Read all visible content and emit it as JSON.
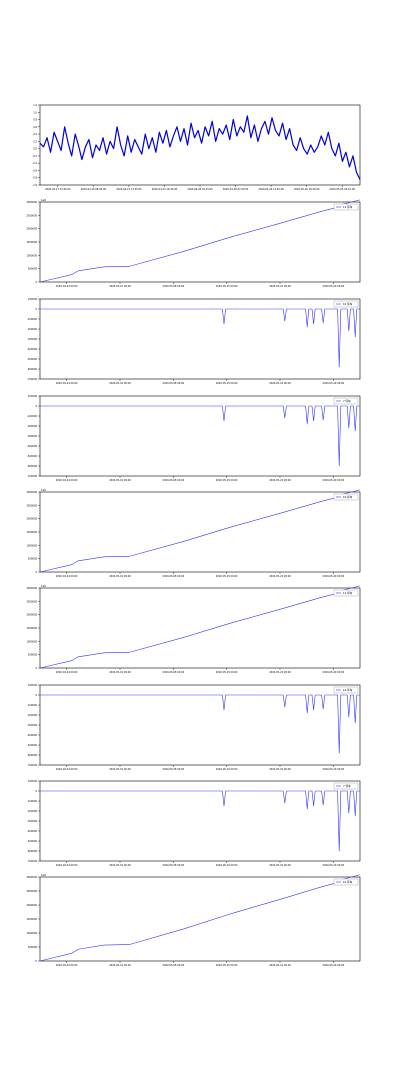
{
  "chart_data": [
    {
      "type": "line",
      "ylim": [
        -1.0,
        1.2
      ],
      "yticks": [
        1.2,
        1.0,
        0.8,
        0.6,
        0.4,
        0.2,
        0.0,
        -0.2,
        -0.4,
        -0.6,
        -0.8,
        -1.0
      ],
      "ytick_labels": [
        "1.2",
        "1.0",
        "0.8",
        "0.6",
        "0.4",
        "0.2",
        "0.0",
        "-0.2",
        "-0.4",
        "-0.6",
        "-0.8",
        "-1.0"
      ],
      "xtick_labels": [
        "2020-04-17 03:45:00",
        "2020-04-19 08:00:00",
        "2020-04-21 13:45:00",
        "2020-04-23 19:30:00",
        "2020-04-26 01:15:00",
        "2020-04-28 07:00:00",
        "2020-04-30 12:45:00",
        "2020-05-02 18:30:00",
        "2020-05-05 00:15:00"
      ],
      "series": [
        {
          "color": "#0000dd",
          "x": [
            0.0,
            0.011,
            0.022,
            0.033,
            0.044,
            0.055,
            0.066,
            0.077,
            0.088,
            0.099,
            0.11,
            0.12,
            0.131,
            0.142,
            0.153,
            0.164,
            0.175,
            0.186,
            0.197,
            0.208,
            0.219,
            0.23,
            0.241,
            0.252,
            0.263,
            0.274,
            0.285,
            0.296,
            0.307,
            0.318,
            0.329,
            0.34,
            0.351,
            0.362,
            0.373,
            0.384,
            0.395,
            0.406,
            0.417,
            0.428,
            0.439,
            0.45,
            0.461,
            0.472,
            0.483,
            0.494,
            0.505,
            0.516,
            0.527,
            0.538,
            0.549,
            0.56,
            0.571,
            0.582,
            0.593,
            0.604,
            0.615,
            0.626,
            0.637,
            0.648,
            0.659,
            0.67,
            0.681,
            0.692,
            0.703,
            0.714,
            0.725,
            0.736,
            0.747,
            0.758,
            0.769,
            0.78,
            0.791,
            0.802,
            0.813,
            0.824,
            0.835,
            0.846,
            0.857,
            0.868,
            0.879,
            0.89,
            0.901,
            0.912,
            0.923,
            0.934,
            0.945,
            0.956,
            0.967,
            0.978,
            0.989,
            1.0
          ],
          "y": [
            0.15,
            0.05,
            0.3,
            -0.1,
            0.45,
            0.2,
            -0.05,
            0.6,
            0.15,
            -0.2,
            0.4,
            0.1,
            -0.3,
            0.05,
            0.25,
            -0.25,
            0.1,
            -0.05,
            0.3,
            -0.15,
            0.2,
            0.0,
            0.6,
            0.1,
            -0.2,
            0.35,
            -0.1,
            0.25,
            0.05,
            -0.15,
            0.4,
            0.0,
            0.3,
            -0.1,
            0.45,
            0.15,
            0.5,
            0.05,
            0.35,
            0.6,
            0.2,
            0.55,
            0.1,
            0.7,
            0.3,
            0.5,
            0.15,
            0.6,
            0.35,
            0.75,
            0.2,
            0.55,
            0.4,
            0.65,
            0.25,
            0.8,
            0.35,
            0.6,
            0.45,
            0.9,
            0.3,
            0.65,
            0.2,
            0.55,
            0.75,
            0.4,
            0.85,
            0.5,
            0.35,
            0.7,
            0.25,
            0.55,
            0.1,
            -0.05,
            0.3,
            0.0,
            -0.15,
            0.1,
            -0.1,
            0.05,
            0.35,
            0.1,
            0.45,
            0.0,
            -0.2,
            0.15,
            -0.35,
            -0.1,
            -0.5,
            -0.2,
            -0.65,
            -0.85
          ]
        }
      ]
    },
    {
      "type": "line",
      "offset_text": "1e6",
      "legend": "11 停车",
      "ylim": [
        0,
        3000000
      ],
      "yticks": [
        0,
        500000,
        1000000,
        1500000,
        2000000,
        2500000,
        3000000
      ],
      "ytick_labels": [
        "0",
        "500000",
        "1000000",
        "1500000",
        "2000000",
        "2500000",
        "3000000"
      ],
      "xtick_labels": [
        "2020-04-24 00:00",
        "2020-05-01 00:00",
        "2020-05-08 00:00",
        "2020-05-15 00:00",
        "2020-05-22 00:00",
        "2020-05-29 00:00"
      ],
      "series": [
        {
          "color": "#3333ff",
          "x": [
            0.0,
            0.1,
            0.12,
            0.2,
            0.28,
            0.45,
            0.6,
            0.75,
            0.88,
            0.93,
            0.94,
            1.0
          ],
          "y": [
            0,
            280000,
            420000,
            570000,
            590000,
            1150000,
            1700000,
            2200000,
            2650000,
            2800000,
            2900000,
            3080000
          ]
        }
      ]
    },
    {
      "type": "line",
      "legend": "10 停车",
      "ylim": [
        -700000,
        100000
      ],
      "yticks": [
        100000,
        0,
        -100000,
        -200000,
        -300000,
        -400000,
        -500000,
        -600000,
        -700000
      ],
      "ytick_labels": [
        "100000",
        "0",
        "-100000",
        "-200000",
        "-300000",
        "-400000",
        "-500000",
        "-600000",
        "-700000"
      ],
      "xtick_labels": [
        "2020-04-24 00:00",
        "2020-05-01 00:00",
        "2020-05-08 00:00",
        "2020-05-15 00:00",
        "2020-05-22 00:00",
        "2020-05-29 00:00"
      ],
      "series": [
        {
          "color": "#3333ff",
          "x": [
            0.0,
            0.57,
            0.575,
            0.58,
            0.76,
            0.765,
            0.77,
            0.83,
            0.835,
            0.84,
            0.85,
            0.855,
            0.86,
            0.88,
            0.885,
            0.89,
            0.93,
            0.935,
            0.94,
            0.96,
            0.965,
            0.97,
            0.98,
            0.985,
            0.99,
            1.0
          ],
          "y": [
            0,
            0,
            -150000,
            0,
            0,
            -120000,
            0,
            0,
            -180000,
            0,
            0,
            -150000,
            0,
            0,
            -140000,
            0,
            0,
            -580000,
            0,
            0,
            -220000,
            0,
            0,
            -280000,
            0,
            0
          ]
        }
      ]
    },
    {
      "type": "line",
      "legend": "7 停车",
      "ylim": [
        -700000,
        100000
      ],
      "yticks": [
        100000,
        0,
        -100000,
        -200000,
        -300000,
        -400000,
        -500000,
        -600000,
        -700000
      ],
      "ytick_labels": [
        "100000",
        "0",
        "-100000",
        "-200000",
        "-300000",
        "-400000",
        "-500000",
        "-600000",
        "-700000"
      ],
      "xtick_labels": [
        "2020-04-24 00:00",
        "2020-05-01 00:00",
        "2020-05-08 00:00",
        "2020-05-15 00:00",
        "2020-05-22 00:00",
        "2020-05-29 00:00"
      ],
      "series": [
        {
          "color": "#3333ff",
          "x": [
            0.0,
            0.57,
            0.575,
            0.58,
            0.76,
            0.765,
            0.77,
            0.83,
            0.835,
            0.84,
            0.85,
            0.855,
            0.86,
            0.88,
            0.885,
            0.89,
            0.93,
            0.935,
            0.94,
            0.96,
            0.965,
            0.97,
            0.98,
            0.985,
            0.99,
            1.0
          ],
          "y": [
            0,
            0,
            -150000,
            0,
            0,
            -120000,
            0,
            0,
            -180000,
            0,
            0,
            -150000,
            0,
            0,
            -140000,
            0,
            0,
            -600000,
            0,
            0,
            -220000,
            0,
            0,
            -250000,
            0,
            0
          ]
        }
      ]
    },
    {
      "type": "line",
      "offset_text": "1e6",
      "legend": "10 停车",
      "ylim": [
        0,
        3000000
      ],
      "yticks": [
        0,
        500000,
        1000000,
        1500000,
        2000000,
        2500000,
        3000000
      ],
      "ytick_labels": [
        "0",
        "500000",
        "1000000",
        "1500000",
        "2000000",
        "2500000",
        "3000000"
      ],
      "xtick_labels": [
        "2020-04-24 00:00",
        "2020-05-01 00:00",
        "2020-05-08 00:00",
        "2020-05-15 00:00",
        "2020-05-22 00:00",
        "2020-05-29 00:00"
      ],
      "series": [
        {
          "color": "#3333ff",
          "x": [
            0.0,
            0.1,
            0.12,
            0.2,
            0.28,
            0.45,
            0.6,
            0.75,
            0.88,
            0.93,
            0.94,
            1.0
          ],
          "y": [
            0,
            280000,
            420000,
            570000,
            590000,
            1150000,
            1700000,
            2200000,
            2650000,
            2800000,
            2900000,
            3080000
          ]
        }
      ]
    },
    {
      "type": "line",
      "offset_text": "1e6",
      "legend": "11 停车",
      "ylim": [
        0,
        3000000
      ],
      "yticks": [
        0,
        500000,
        1000000,
        1500000,
        2000000,
        2500000,
        3000000
      ],
      "ytick_labels": [
        "0",
        "500000",
        "1000000",
        "1500000",
        "2000000",
        "2500000",
        "3000000"
      ],
      "xtick_labels": [
        "2020-04-24 00:00",
        "2020-05-01 00:00",
        "2020-05-08 00:00",
        "2020-05-15 00:00",
        "2020-05-22 00:00",
        "2020-05-29 00:00"
      ],
      "series": [
        {
          "color": "#3333ff",
          "x": [
            0.0,
            0.1,
            0.12,
            0.2,
            0.28,
            0.45,
            0.6,
            0.75,
            0.88,
            0.93,
            0.94,
            1.0
          ],
          "y": [
            0,
            280000,
            420000,
            570000,
            590000,
            1150000,
            1700000,
            2200000,
            2650000,
            2800000,
            2900000,
            3080000
          ]
        }
      ]
    },
    {
      "type": "line",
      "legend": "10 停车",
      "ylim": [
        -700000,
        100000
      ],
      "yticks": [
        100000,
        0,
        -100000,
        -200000,
        -300000,
        -400000,
        -500000,
        -600000,
        -700000
      ],
      "ytick_labels": [
        "100000",
        "0",
        "-100000",
        "-200000",
        "-300000",
        "-400000",
        "-500000",
        "-600000",
        "-700000"
      ],
      "xtick_labels": [
        "2020-04-24 00:00",
        "2020-05-01 00:00",
        "2020-05-08 00:00",
        "2020-05-15 00:00",
        "2020-05-22 00:00",
        "2020-05-29 00:00"
      ],
      "series": [
        {
          "color": "#3333ff",
          "x": [
            0.0,
            0.57,
            0.575,
            0.58,
            0.76,
            0.765,
            0.77,
            0.83,
            0.835,
            0.84,
            0.85,
            0.855,
            0.86,
            0.88,
            0.885,
            0.89,
            0.93,
            0.935,
            0.94,
            0.96,
            0.965,
            0.97,
            0.98,
            0.985,
            0.99,
            1.0
          ],
          "y": [
            0,
            0,
            -150000,
            0,
            0,
            -120000,
            0,
            0,
            -180000,
            0,
            0,
            -150000,
            0,
            0,
            -140000,
            0,
            0,
            -580000,
            0,
            0,
            -220000,
            0,
            0,
            -280000,
            0,
            0
          ]
        }
      ]
    },
    {
      "type": "line",
      "legend": "7 停车",
      "ylim": [
        -700000,
        100000
      ],
      "yticks": [
        100000,
        0,
        -100000,
        -200000,
        -300000,
        -400000,
        -500000,
        -600000,
        -700000
      ],
      "ytick_labels": [
        "100000",
        "0",
        "-100000",
        "-200000",
        "-300000",
        "-400000",
        "-500000",
        "-600000",
        "-700000"
      ],
      "xtick_labels": [
        "2020-04-24 00:00",
        "2020-05-01 00:00",
        "2020-05-08 00:00",
        "2020-05-15 00:00",
        "2020-05-22 00:00",
        "2020-05-29 00:00"
      ],
      "series": [
        {
          "color": "#3333ff",
          "x": [
            0.0,
            0.57,
            0.575,
            0.58,
            0.76,
            0.765,
            0.77,
            0.83,
            0.835,
            0.84,
            0.85,
            0.855,
            0.86,
            0.88,
            0.885,
            0.89,
            0.93,
            0.935,
            0.94,
            0.96,
            0.965,
            0.97,
            0.98,
            0.985,
            0.99,
            1.0
          ],
          "y": [
            0,
            0,
            -150000,
            0,
            0,
            -120000,
            0,
            0,
            -180000,
            0,
            0,
            -150000,
            0,
            0,
            -140000,
            0,
            0,
            -600000,
            0,
            0,
            -220000,
            0,
            0,
            -250000,
            0,
            0
          ]
        }
      ]
    },
    {
      "type": "line",
      "offset_text": "1e6",
      "legend": "10 停车",
      "ylim": [
        0,
        3000000
      ],
      "yticks": [
        0,
        500000,
        1000000,
        1500000,
        2000000,
        2500000,
        3000000
      ],
      "ytick_labels": [
        "0",
        "500000",
        "1000000",
        "1500000",
        "2000000",
        "2500000",
        "3000000"
      ],
      "xtick_labels": [
        "2020-04-24 00:00",
        "2020-05-01 00:00",
        "2020-05-08 00:00",
        "2020-05-15 00:00",
        "2020-05-22 00:00",
        "2020-05-29 00:00"
      ],
      "series": [
        {
          "color": "#3333ff",
          "x": [
            0.0,
            0.1,
            0.12,
            0.2,
            0.28,
            0.45,
            0.6,
            0.75,
            0.88,
            0.93,
            0.94,
            1.0
          ],
          "y": [
            0,
            280000,
            420000,
            570000,
            590000,
            1150000,
            1700000,
            2200000,
            2650000,
            2800000,
            2900000,
            3080000
          ]
        }
      ]
    }
  ]
}
